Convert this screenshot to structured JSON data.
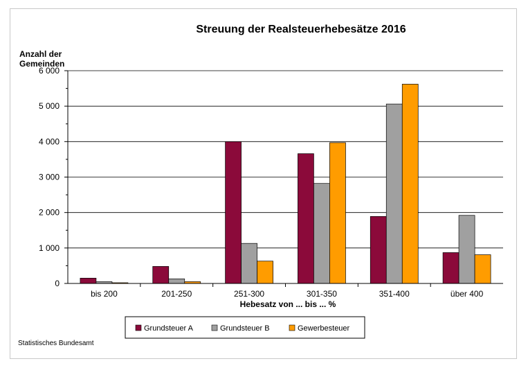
{
  "chart_data": {
    "type": "bar",
    "title": "Streuung der Realsteuerhebesätze 2016",
    "ylabel_line1": "Anzahl der",
    "ylabel_line2": "Gemeinden",
    "xlabel": "Hebesatz von ... bis ... %",
    "ylim": [
      0,
      6000
    ],
    "yticks": [
      0,
      1000,
      2000,
      3000,
      4000,
      5000,
      6000
    ],
    "ytick_labels": [
      "0",
      "1 000",
      "2 000",
      "3 000",
      "4 000",
      "5 000",
      "6 000"
    ],
    "grid": true,
    "legend_placement": "bottom",
    "categories": [
      "bis 200",
      "201-250",
      "251-300",
      "301-350",
      "351-400",
      "über 400"
    ],
    "series": [
      {
        "name": "Grundsteuer A",
        "color": "#8b0a3a",
        "values": [
          150,
          480,
          4000,
          3660,
          1890,
          870
        ]
      },
      {
        "name": "Grundsteuer B",
        "color": "#a0a0a0",
        "values": [
          50,
          130,
          1130,
          2820,
          5060,
          1920
        ]
      },
      {
        "name": "Gewerbesteuer",
        "color": "#ff9c00",
        "values": [
          20,
          50,
          630,
          3970,
          5620,
          810
        ]
      }
    ]
  },
  "source": "Statistisches Bundesamt"
}
